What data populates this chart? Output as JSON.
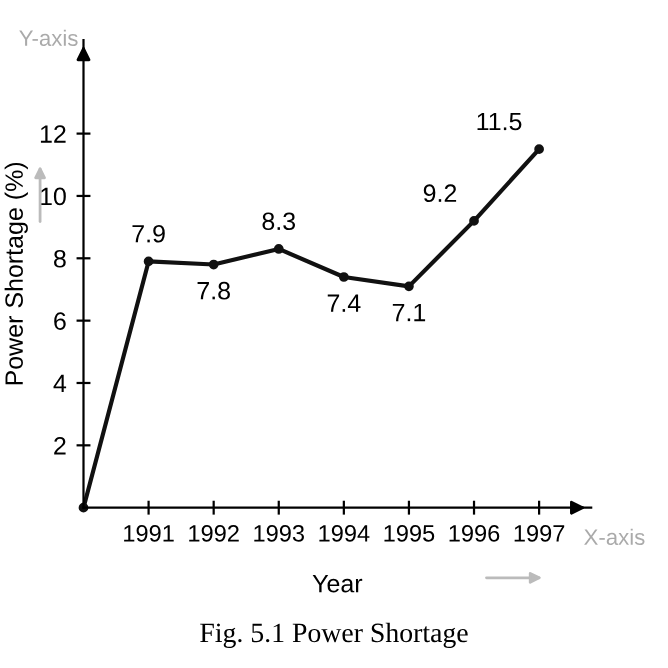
{
  "chart_data": {
    "type": "line",
    "xlabel": "Year",
    "ylabel": "Power Shortage (%)",
    "categories": [
      null,
      "1991",
      "1992",
      "1993",
      "1994",
      "1995",
      "1996",
      "1997"
    ],
    "series": [
      {
        "color": "#111111",
        "values": [
          0,
          7.9,
          7.8,
          8.3,
          7.4,
          7.1,
          9.2,
          11.5
        ],
        "value_labels": [
          null,
          "7.9",
          "7.8",
          "8.3",
          "7.4",
          "7.1",
          "9.2",
          "11.5"
        ]
      }
    ],
    "ylim": [
      0,
      15
    ],
    "yticks": [
      2,
      4,
      6,
      8,
      10,
      12
    ],
    "grid": false,
    "legend": false,
    "marker": "circle",
    "line_style": "solid",
    "annotations": [
      "Y-axis",
      "X-axis",
      "Fig. 5.1 Power Shortage"
    ]
  }
}
